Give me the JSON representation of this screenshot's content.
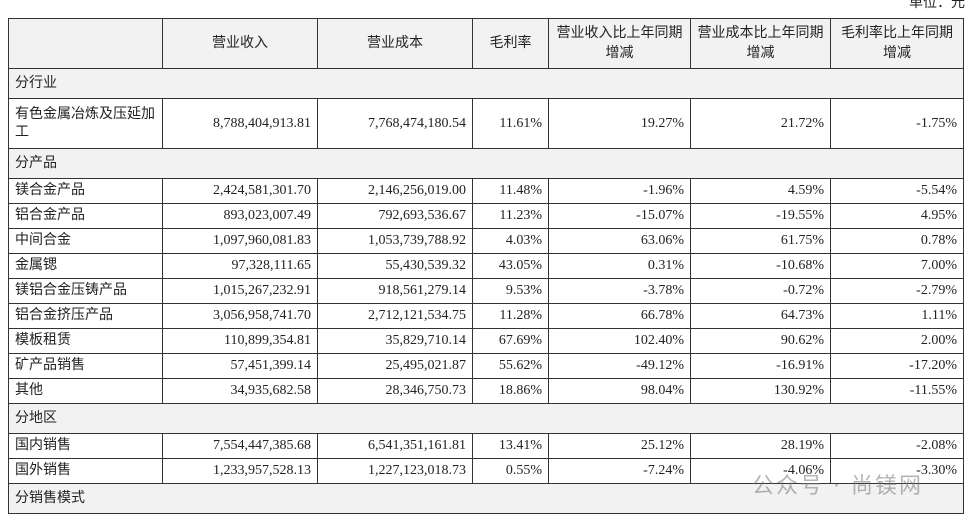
{
  "header": {
    "unit": "单位：元"
  },
  "table": {
    "columns": [
      "",
      "营业收入",
      "营业成本",
      "毛利率",
      "营业收入比上年同期增减",
      "营业成本比上年同期增减",
      "毛利率比上年同期增减"
    ],
    "rows": [
      [
        "分行业"
      ],
      [
        "有色金属冶炼及压延加工",
        "8,788,404,913.81",
        "7,768,474,180.54",
        "11.61%",
        "19.27%",
        "21.72%",
        "-1.75%"
      ],
      [
        "分产品"
      ],
      [
        "镁合金产品",
        "2,424,581,301.70",
        "2,146,256,019.00",
        "11.48%",
        "-1.96%",
        "4.59%",
        "-5.54%"
      ],
      [
        "铝合金产品",
        "893,023,007.49",
        "792,693,536.67",
        "11.23%",
        "-15.07%",
        "-19.55%",
        "4.95%"
      ],
      [
        "中间合金",
        "1,097,960,081.83",
        "1,053,739,788.92",
        "4.03%",
        "63.06%",
        "61.75%",
        "0.78%"
      ],
      [
        "金属锶",
        "97,328,111.65",
        "55,430,539.32",
        "43.05%",
        "0.31%",
        "-10.68%",
        "7.00%"
      ],
      [
        "镁铝合金压铸产品",
        "1,015,267,232.91",
        "918,561,279.14",
        "9.53%",
        "-3.78%",
        "-0.72%",
        "-2.79%"
      ],
      [
        "铝合金挤压产品",
        "3,056,958,741.70",
        "2,712,121,534.75",
        "11.28%",
        "66.78%",
        "64.73%",
        "1.11%"
      ],
      [
        "模板租赁",
        "110,899,354.81",
        "35,829,710.14",
        "67.69%",
        "102.40%",
        "90.62%",
        "2.00%"
      ],
      [
        "矿产品销售",
        "57,451,399.14",
        "25,495,021.87",
        "55.62%",
        "-49.12%",
        "-16.91%",
        "-17.20%"
      ],
      [
        "其他",
        "34,935,682.58",
        "28,346,750.73",
        "18.86%",
        "98.04%",
        "130.92%",
        "-11.55%"
      ],
      [
        "分地区"
      ],
      [
        "国内销售",
        "7,554,447,385.68",
        "6,541,351,161.81",
        "13.41%",
        "25.12%",
        "28.19%",
        "-2.08%"
      ],
      [
        "国外销售",
        "1,233,957,528.13",
        "1,227,123,018.73",
        "0.55%",
        "-7.24%",
        "-4.06%",
        "-3.30%"
      ],
      [
        "分销售模式"
      ]
    ]
  },
  "watermark": "公众号 · 尚镁网"
}
